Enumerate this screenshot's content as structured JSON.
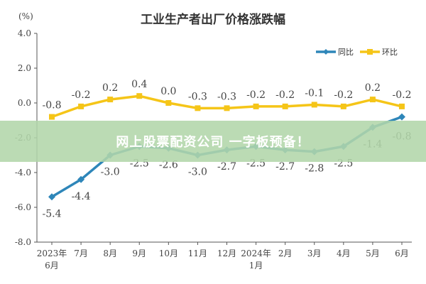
{
  "chart_data": {
    "type": "line",
    "title": "工业生产者出厂价格涨跌幅",
    "unit": "(%)",
    "categories": [
      [
        "2023年",
        "6月"
      ],
      [
        "7月"
      ],
      [
        "8月"
      ],
      [
        "9月"
      ],
      [
        "10月"
      ],
      [
        "11月"
      ],
      [
        "12月"
      ],
      [
        "2024年",
        "1月"
      ],
      [
        "2月"
      ],
      [
        "3月"
      ],
      [
        "4月"
      ],
      [
        "5月"
      ],
      [
        "6月"
      ]
    ],
    "ylim": [
      -8.0,
      4.0
    ],
    "yticks": [
      "4.0",
      "2.0",
      "0.0",
      "-2.0",
      "-4.0",
      "-6.0",
      "-8.0"
    ],
    "legend_position": "top-right",
    "grid": false,
    "series": [
      {
        "name": "同比",
        "color": "#2e86b9",
        "values": [
          -5.4,
          -4.4,
          -3.0,
          -2.5,
          -2.6,
          -3.0,
          -2.7,
          -2.5,
          -2.7,
          -2.8,
          -2.5,
          -1.4,
          -0.8
        ],
        "labels": [
          "-5.4",
          "-4.4",
          "-3.0",
          "-2.5",
          "-2.6",
          "-3.0",
          "-2.7",
          "-2.5",
          "-2.7",
          "-2.8",
          "-2.5",
          "-1.4",
          "-0.8"
        ]
      },
      {
        "name": "环比",
        "color": "#f5c518",
        "values": [
          -0.8,
          -0.2,
          0.2,
          0.4,
          0.0,
          -0.3,
          -0.3,
          -0.2,
          -0.2,
          -0.1,
          -0.2,
          0.2,
          -0.2
        ],
        "labels": [
          "-0.8",
          "-0.2",
          "0.2",
          "0.4",
          "0.0",
          "-0.3",
          "-0.3",
          "-0.2",
          "-0.2",
          "-0.1",
          "-0.2",
          "0.2",
          "-0.2"
        ]
      }
    ]
  },
  "banner": {
    "text": "网上股票配资公司 一字板预备！"
  }
}
